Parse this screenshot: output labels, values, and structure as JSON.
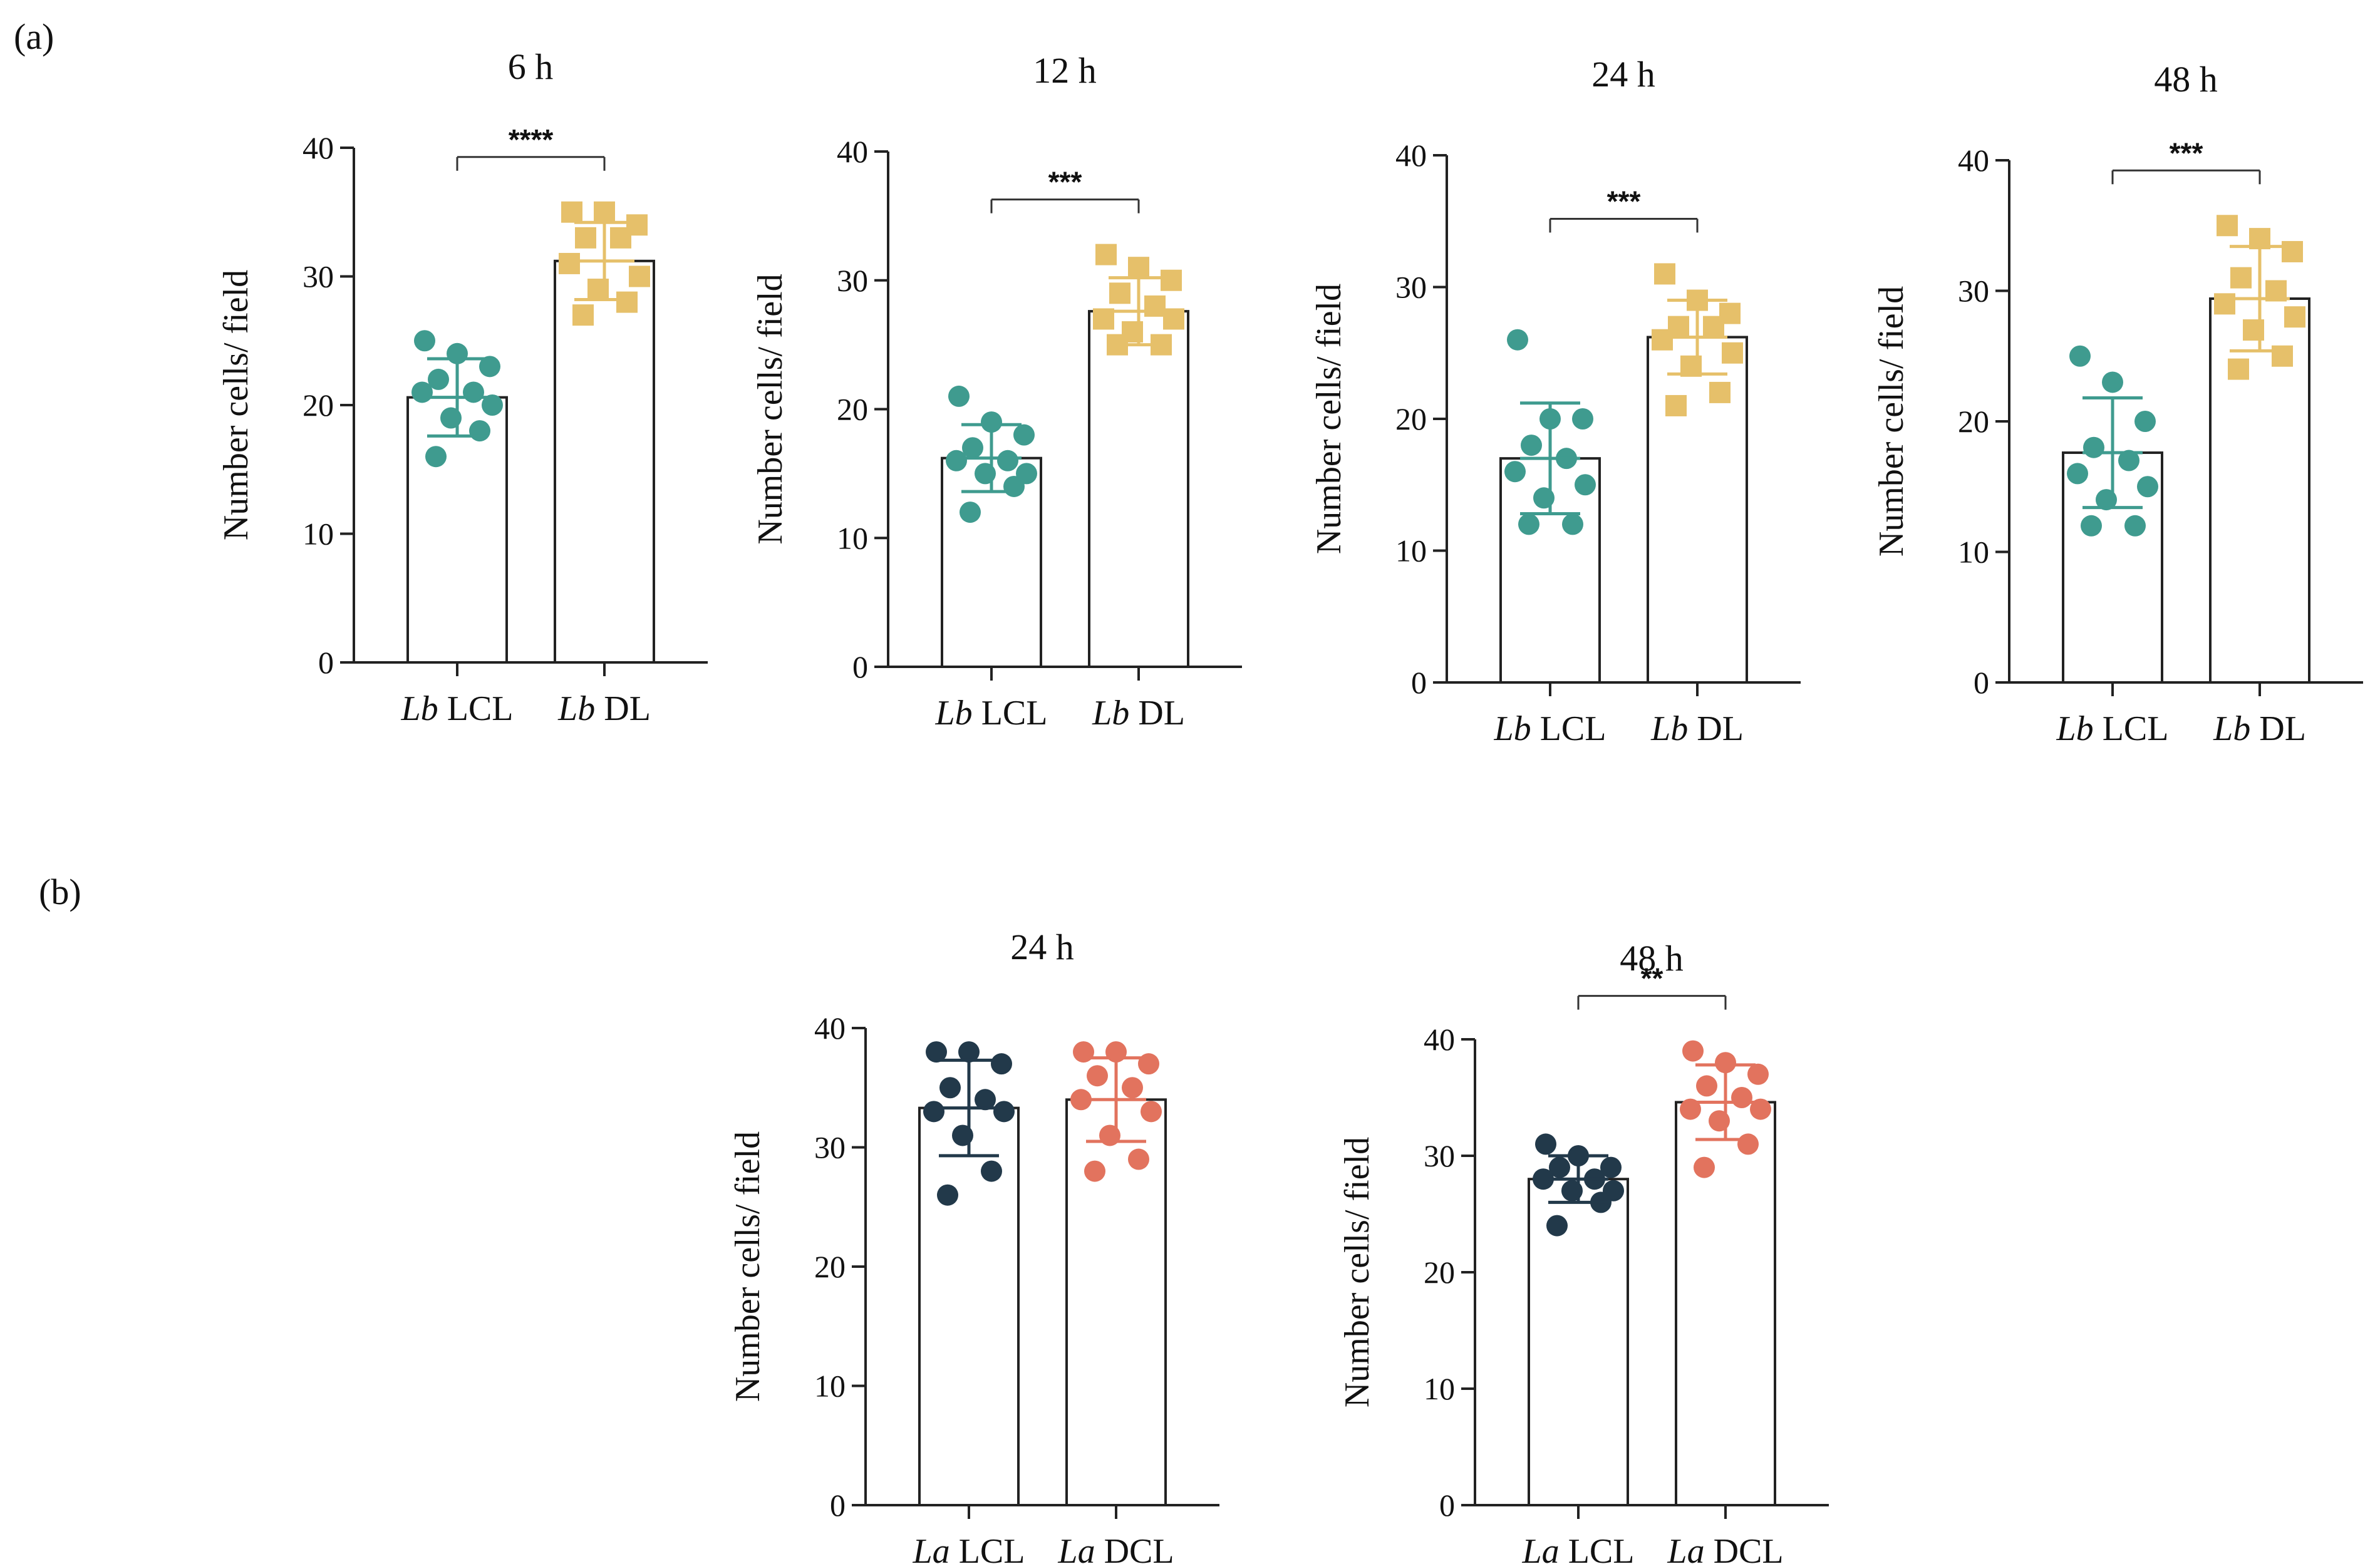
{
  "panel_labels": [
    "(a)",
    "(b)"
  ],
  "chart_data": [
    {
      "type": "bar",
      "panel": "a",
      "title": "6 h",
      "ylabel": "Number cells/ field",
      "ylim": [
        0,
        40
      ],
      "yticks": [
        0,
        10,
        20,
        30,
        40
      ],
      "categories": [
        {
          "species": "Lb",
          "label": "LCL"
        },
        {
          "species": "Lb",
          "label": "DL"
        }
      ],
      "colors": [
        "#3f9b8f",
        "#e6c06a"
      ],
      "markers": [
        "circle",
        "square"
      ],
      "bar_values": [
        20.6,
        31.2
      ],
      "sd": [
        3.0,
        3.0
      ],
      "points": [
        [
          25,
          24,
          23,
          22,
          21,
          21,
          20,
          19,
          18,
          16
        ],
        [
          35,
          35,
          34,
          33,
          33,
          31,
          30,
          29,
          28,
          27
        ]
      ],
      "significance": "****"
    },
    {
      "type": "bar",
      "panel": "a",
      "title": "12 h",
      "ylabel": "Number cells/ field",
      "ylim": [
        0,
        40
      ],
      "yticks": [
        0,
        10,
        20,
        30,
        40
      ],
      "categories": [
        {
          "species": "Lb",
          "label": "LCL"
        },
        {
          "species": "Lb",
          "label": "DL"
        }
      ],
      "colors": [
        "#3f9b8f",
        "#e6c06a"
      ],
      "markers": [
        "circle",
        "square"
      ],
      "bar_values": [
        16.2,
        27.6
      ],
      "sd": [
        2.6,
        2.6
      ],
      "points": [
        [
          21,
          19,
          18,
          17,
          16,
          16,
          15,
          15,
          14,
          12
        ],
        [
          32,
          31,
          30,
          29,
          28,
          27,
          27,
          26,
          25,
          25
        ]
      ],
      "significance": "***"
    },
    {
      "type": "bar",
      "panel": "a",
      "title": "24 h",
      "ylabel": "Number cells/ field",
      "ylim": [
        0,
        40
      ],
      "yticks": [
        0,
        10,
        20,
        30,
        40
      ],
      "categories": [
        {
          "species": "Lb",
          "label": "LCL"
        },
        {
          "species": "Lb",
          "label": "DL"
        }
      ],
      "colors": [
        "#3f9b8f",
        "#e6c06a"
      ],
      "markers": [
        "circle",
        "square"
      ],
      "bar_values": [
        17.0,
        26.2
      ],
      "sd": [
        4.2,
        2.8
      ],
      "points": [
        [
          26,
          20,
          20,
          18,
          17,
          16,
          15,
          14,
          12,
          12
        ],
        [
          31,
          29,
          28,
          27,
          27,
          26,
          25,
          24,
          22,
          21
        ]
      ],
      "significance": "***"
    },
    {
      "type": "bar",
      "panel": "a",
      "title": "48 h",
      "ylabel": "Number cells/ field",
      "ylim": [
        0,
        40
      ],
      "yticks": [
        0,
        10,
        20,
        30,
        40
      ],
      "categories": [
        {
          "species": "Lb",
          "label": "LCL"
        },
        {
          "species": "Lb",
          "label": "DL"
        }
      ],
      "colors": [
        "#3f9b8f",
        "#e6c06a"
      ],
      "markers": [
        "circle",
        "square"
      ],
      "bar_values": [
        17.6,
        29.4
      ],
      "sd": [
        4.2,
        4.0
      ],
      "points": [
        [
          25,
          23,
          20,
          18,
          17,
          16,
          15,
          14,
          12,
          12
        ],
        [
          35,
          34,
          33,
          31,
          30,
          29,
          28,
          27,
          25,
          24
        ]
      ],
      "significance": "***"
    },
    {
      "type": "bar",
      "panel": "b",
      "title": "24 h",
      "ylabel": "Number cells/ field",
      "ylim": [
        0,
        40
      ],
      "yticks": [
        0,
        10,
        20,
        30,
        40
      ],
      "categories": [
        {
          "species": "La",
          "label": "LCL"
        },
        {
          "species": "La",
          "label": "DCL"
        }
      ],
      "colors": [
        "#22394a",
        "#e2735e"
      ],
      "markers": [
        "circle",
        "circle"
      ],
      "bar_values": [
        33.3,
        34.0
      ],
      "sd": [
        4.0,
        3.5
      ],
      "points": [
        [
          38,
          38,
          37,
          35,
          34,
          33,
          33,
          31,
          28,
          26
        ],
        [
          38,
          38,
          37,
          36,
          35,
          34,
          33,
          31,
          29,
          28
        ]
      ],
      "significance": ""
    },
    {
      "type": "bar",
      "panel": "b",
      "title": "48 h",
      "ylabel": "Number cells/ field",
      "ylim": [
        0,
        40
      ],
      "yticks": [
        0,
        10,
        20,
        30,
        40
      ],
      "categories": [
        {
          "species": "La",
          "label": "LCL"
        },
        {
          "species": "La",
          "label": "DCL"
        }
      ],
      "colors": [
        "#22394a",
        "#e2735e"
      ],
      "markers": [
        "circle",
        "circle"
      ],
      "bar_values": [
        28.0,
        34.6
      ],
      "sd": [
        2.0,
        3.2
      ],
      "points": [
        [
          31,
          30,
          29,
          29,
          28,
          28,
          27,
          27,
          26,
          24
        ],
        [
          39,
          38,
          37,
          36,
          35,
          34,
          34,
          33,
          31,
          29
        ]
      ],
      "significance": "**"
    }
  ]
}
